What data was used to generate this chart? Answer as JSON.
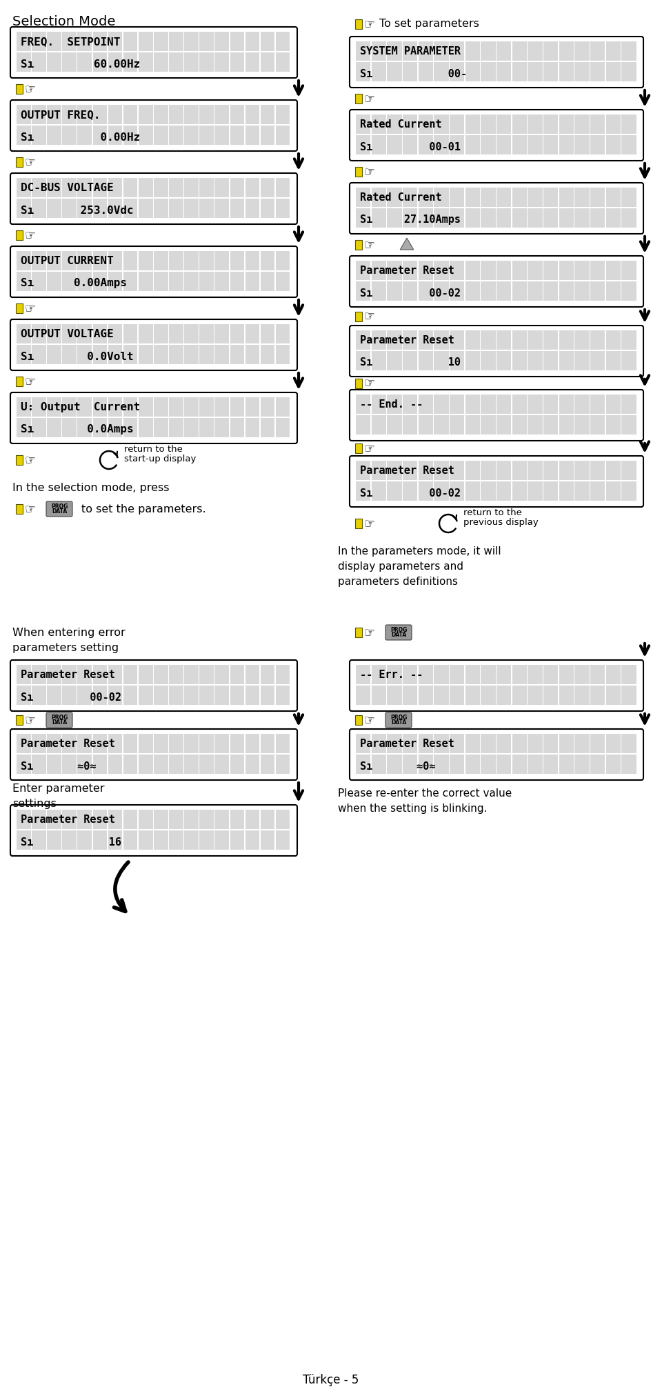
{
  "bg_color": "#ffffff",
  "fig_w": 9.6,
  "fig_h": 20.27,
  "left_boxes": [
    {
      "line1": "FREQ.  SETPOINT",
      "line2": "Sı         60.00Hz"
    },
    {
      "line1": "OUTPUT FREQ.",
      "line2": "Sı          0.00Hz"
    },
    {
      "line1": "DC-BUS VOLTAGE",
      "line2": "Sı       253.0Vdc"
    },
    {
      "line1": "OUTPUT CURRENT",
      "line2": "Sı      0.00Amps"
    },
    {
      "line1": "OUTPUT VOLTAGE",
      "line2": "Sı        0.0Volt"
    },
    {
      "line1": "U: Output  Current",
      "line2": "Sı        0.0Amps"
    }
  ],
  "right_boxes": [
    {
      "line1": "SYSTEM PARAMETER",
      "line2": "Sı            00-"
    },
    {
      "line1": "Rated Current",
      "line2": "Sı         00-01"
    },
    {
      "line1": "Rated Current",
      "line2": "Sı     27.10Amps"
    },
    {
      "line1": "Parameter Reset",
      "line2": "Sı         00-02"
    },
    {
      "line1": "Parameter Reset",
      "line2": "Sı            10"
    },
    {
      "line1": "-- End. --",
      "line2": ""
    },
    {
      "line1": "Parameter Reset",
      "line2": "Sı         00-02"
    }
  ],
  "btm_left_boxes": [
    {
      "line1": "Parameter Reset",
      "line2": "Sı         00-02"
    },
    {
      "line1": "Parameter Reset",
      "line2": "Sı       ≈0≈"
    },
    {
      "line1": "Parameter Reset",
      "line2": "Sı            16"
    }
  ],
  "btm_right_boxes": [
    {
      "line1": "-- Err. --",
      "line2": ""
    },
    {
      "line1": "Parameter Reset",
      "line2": "Sı       ≈0≈"
    }
  ]
}
